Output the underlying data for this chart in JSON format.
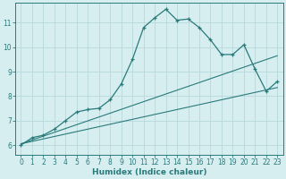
{
  "xlabel": "Humidex (Indice chaleur)",
  "bg_color": "#d6eef0",
  "grid_color": "#b8d8db",
  "line_color": "#2a7a7a",
  "xlim": [
    -0.5,
    23.5
  ],
  "ylim": [
    5.6,
    11.8
  ],
  "xticks": [
    0,
    1,
    2,
    3,
    4,
    5,
    6,
    7,
    8,
    9,
    10,
    11,
    12,
    13,
    14,
    15,
    16,
    17,
    18,
    19,
    20,
    21,
    22,
    23
  ],
  "yticks": [
    6,
    7,
    8,
    9,
    10,
    11
  ],
  "main_x": [
    0,
    1,
    2,
    3,
    4,
    5,
    6,
    7,
    8,
    9,
    10,
    11,
    12,
    13,
    14,
    15,
    16,
    17,
    18,
    19,
    20,
    21,
    22,
    23
  ],
  "main_y": [
    6.0,
    6.3,
    6.4,
    6.65,
    7.0,
    7.35,
    7.45,
    7.5,
    7.85,
    8.5,
    9.5,
    10.8,
    11.2,
    11.55,
    11.1,
    11.15,
    10.8,
    10.3,
    9.7,
    9.7,
    10.1,
    9.1,
    8.2,
    8.6
  ],
  "line1_x": [
    0,
    23
  ],
  "line1_y": [
    6.05,
    8.35
  ],
  "line2_x": [
    0,
    23
  ],
  "line2_y": [
    6.05,
    9.65
  ]
}
